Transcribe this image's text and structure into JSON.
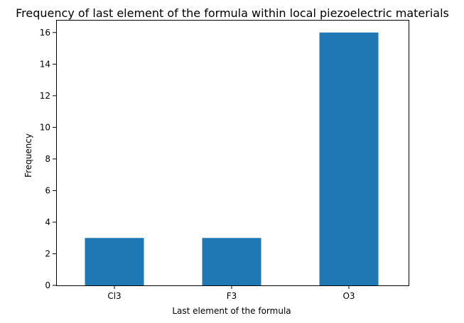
{
  "chart_data": {
    "type": "bar",
    "title": "Frequency of last element of the formula within local piezoelectric materials",
    "xlabel": "Last element of the formula",
    "ylabel": "Frequency",
    "categories": [
      "Cl3",
      "F3",
      "O3"
    ],
    "values": [
      3,
      3,
      16
    ],
    "ylim": [
      0,
      16.8
    ],
    "yticks": [
      0,
      2,
      4,
      6,
      8,
      10,
      12,
      14,
      16
    ],
    "grid": false,
    "bar_color": "#1f77b4"
  }
}
